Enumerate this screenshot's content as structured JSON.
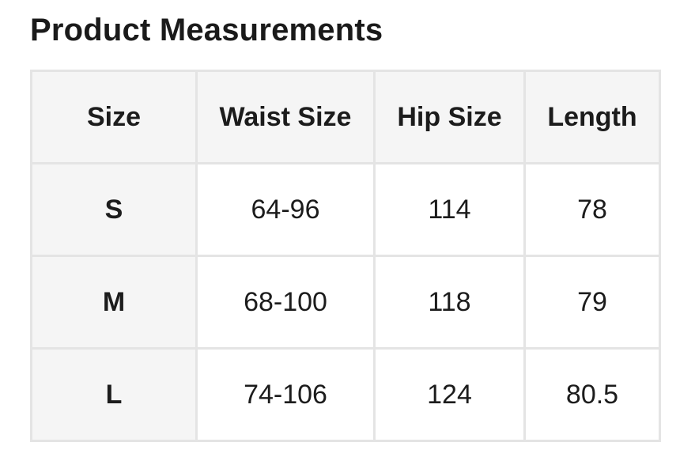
{
  "page": {
    "title": "Product Measurements"
  },
  "table": {
    "columns": [
      "Size",
      "Waist Size",
      "Hip Size",
      "Length"
    ],
    "rows": [
      {
        "size": "S",
        "values": [
          "64-96",
          "114",
          "78"
        ]
      },
      {
        "size": "M",
        "values": [
          "68-100",
          "118",
          "79"
        ]
      },
      {
        "size": "L",
        "values": [
          "74-106",
          "124",
          "80.5"
        ]
      }
    ]
  },
  "colors": {
    "background": "#ffffff",
    "header_bg": "#f5f5f5",
    "border": "#e4e4e4",
    "text": "#1c1c1c",
    "title_text": "#1a1a1a"
  }
}
